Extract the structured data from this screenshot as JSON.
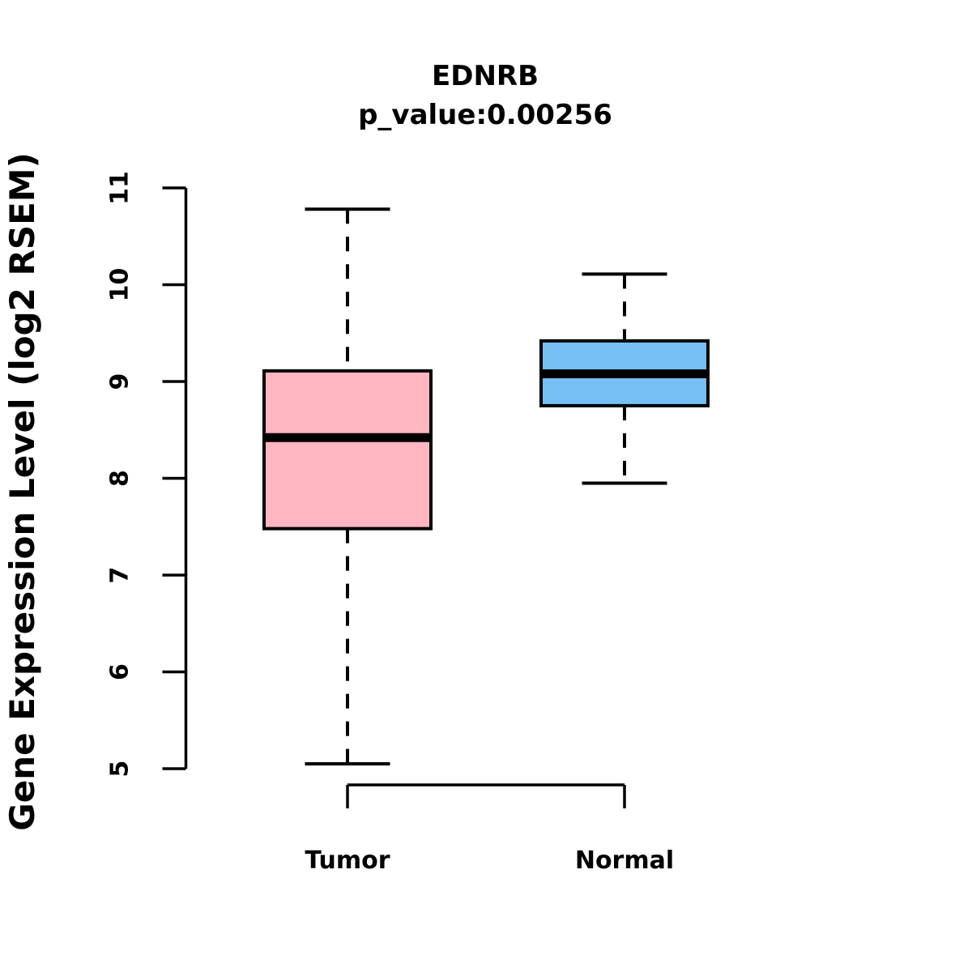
{
  "chart_data": {
    "type": "boxplot",
    "title": "EDNRB",
    "subtitle": "p_value:0.00256",
    "ylabel": "Gene Expression Level (log2 RSEM)",
    "xlabel": "",
    "ylim": [
      5,
      11
    ],
    "yticks": [
      5,
      6,
      7,
      8,
      9,
      10,
      11
    ],
    "grid": false,
    "legend": "none",
    "categories": [
      "Tumor",
      "Normal"
    ],
    "series": [
      {
        "name": "Tumor",
        "fill_color": "#FFB6C1",
        "whisker_low": 5.05,
        "q1": 7.48,
        "median": 8.42,
        "q3": 9.11,
        "whisker_high": 10.78
      },
      {
        "name": "Normal",
        "fill_color": "#76BFF5",
        "whisker_low": 7.95,
        "q1": 8.75,
        "median": 9.08,
        "q3": 9.42,
        "whisker_high": 10.11
      }
    ],
    "colors": {
      "box_border": "#000000",
      "median_line": "#000000",
      "whisker": "#000000",
      "axis": "#000000",
      "text": "#000000",
      "background": "#FFFFFF"
    }
  }
}
